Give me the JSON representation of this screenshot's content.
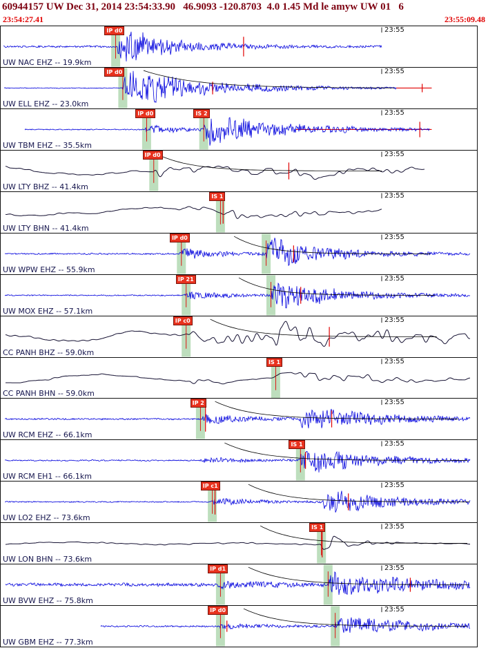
{
  "header": {
    "line": "60944157 UW Dec 31, 2014 23:54:33.90   46.9093 -120.8703  4.0 1.45 Md le amyw UW 01   6",
    "start_time": "23:54:27.41",
    "end_time": "23:55:09.48"
  },
  "colors": {
    "trace_blue": "#0000dd",
    "trace_black": "#161233",
    "pick_bg": "#e8321e",
    "band": "#b2d8b2",
    "marker": "#e00000",
    "frame": "#111111",
    "header_text": "#7d0010",
    "time_text": "#e00000",
    "station_text": "#15154d"
  },
  "traces": [
    {
      "station": "UW NAC EHZ -- 19.9km",
      "minute": "23:55",
      "color": "#0000dd",
      "black": false,
      "picks": [
        {
          "label": "IP d0",
          "frac": 0.218
        }
      ],
      "bands": [
        0.232
      ],
      "vlines": [
        {
          "frac": 0.51,
          "len": 14
        }
      ],
      "hline": null,
      "curve": null,
      "wave": {
        "start": 0.006,
        "end": 0.8,
        "quiet": 1.3,
        "bursts": [
          {
            "at": 0.243,
            "amp": 26,
            "decay": 9
          }
        ],
        "wander": 0,
        "cycles": 0
      }
    },
    {
      "station": "UW ELL EHZ -- 23.0km",
      "minute": "23:55",
      "color": "#0000dd",
      "black": false,
      "picks": [
        {
          "label": "IP d0",
          "frac": 0.218
        }
      ],
      "bands": [
        0.247
      ],
      "vlines": [
        {
          "frac": 0.445,
          "len": 9
        },
        {
          "frac": 0.885,
          "len": 6
        }
      ],
      "hline": {
        "from": 0.83,
        "to": 0.905
      },
      "curve": {
        "from": 0.3,
        "span": 230
      },
      "wave": {
        "start": 0.007,
        "end": 0.83,
        "quiet": 0.5,
        "bursts": [
          {
            "at": 0.256,
            "amp": 27,
            "decay": 6
          }
        ],
        "wander": 0,
        "cycles": 0
      }
    },
    {
      "station": "UW TBM EHZ -- 35.5km",
      "minute": "23:55",
      "color": "#0000dd",
      "black": false,
      "picks": [
        {
          "label": "IP d0",
          "frac": 0.283
        },
        {
          "label": "IS 2",
          "frac": 0.405
        }
      ],
      "bands": [
        0.297,
        0.417
      ],
      "vlines": [
        {
          "frac": 0.88,
          "len": 11
        }
      ],
      "hline": {
        "from": 0.62,
        "to": 0.905
      },
      "curve": null,
      "wave": {
        "start": 0.05,
        "end": 0.9,
        "quiet": 0.7,
        "bursts": [
          {
            "at": 0.303,
            "amp": 7,
            "decay": 14
          },
          {
            "at": 0.423,
            "amp": 22,
            "decay": 6
          }
        ],
        "wander": 0,
        "cycles": 0
      }
    },
    {
      "station": "UW LTY BHZ -- 41.4km",
      "minute": "23:55",
      "color": "#161233",
      "black": true,
      "picks": [
        {
          "label": "IP d0",
          "frac": 0.298
        }
      ],
      "bands": [
        0.312
      ],
      "vlines": [
        {
          "frac": 0.605,
          "len": 12
        }
      ],
      "hline": null,
      "curve": {
        "from": 0.325,
        "span": 150
      },
      "wave": {
        "start": 0.01,
        "end": 0.89,
        "quiet": 1.4,
        "bursts": [
          {
            "at": 0.318,
            "amp": 9,
            "decay": 4
          },
          {
            "at": 0.6,
            "amp": 4,
            "decay": 4
          }
        ],
        "wander": 6,
        "cycles": 2.2
      }
    },
    {
      "station": "UW LTY BHN -- 41.4km",
      "minute": "23:55",
      "color": "#161233",
      "black": true,
      "picks": [
        {
          "label": "IS 1",
          "frac": 0.438
        }
      ],
      "bands": [
        0.452
      ],
      "vlines": [
        {
          "frac": 0.467,
          "len": 16
        }
      ],
      "hline": null,
      "curve": null,
      "wave": {
        "start": 0.01,
        "end": 0.8,
        "quiet": 1.2,
        "bursts": [
          {
            "at": 0.33,
            "amp": 4,
            "decay": 6
          },
          {
            "at": 0.462,
            "amp": 7,
            "decay": 5
          }
        ],
        "wander": 5,
        "cycles": 2.0
      }
    },
    {
      "station": "UW WPW EHZ -- 55.9km",
      "minute": "23:55",
      "color": "#0000dd",
      "black": false,
      "picks": [
        {
          "label": "IP d0",
          "frac": 0.355
        }
      ],
      "bands": [
        0.37,
        0.548
      ],
      "vlines": [
        {
          "frac": 0.615,
          "len": 12
        }
      ],
      "hline": null,
      "curve": {
        "from": 0.49,
        "span": 130
      },
      "wave": {
        "start": 0.008,
        "end": 0.985,
        "quiet": 1.0,
        "bursts": [
          {
            "at": 0.376,
            "amp": 7,
            "decay": 10
          },
          {
            "at": 0.556,
            "amp": 22,
            "decay": 8
          }
        ],
        "wander": 0,
        "cycles": 0
      }
    },
    {
      "station": "UW MOX EHZ -- 57.1km",
      "minute": "23:55",
      "color": "#0000dd",
      "black": false,
      "picks": [
        {
          "label": "IP 21",
          "frac": 0.368
        }
      ],
      "bands": [
        0.38,
        0.558
      ],
      "vlines": [
        {
          "frac": 0.63,
          "len": 12
        }
      ],
      "hline": null,
      "curve": {
        "from": 0.5,
        "span": 130
      },
      "wave": {
        "start": 0.008,
        "end": 0.985,
        "quiet": 0.8,
        "bursts": [
          {
            "at": 0.386,
            "amp": 6,
            "decay": 10
          },
          {
            "at": 0.566,
            "amp": 20,
            "decay": 7
          }
        ],
        "wander": 0,
        "cycles": 0
      }
    },
    {
      "station": "CC PANH BHZ -- 59.0km",
      "minute": "23:55",
      "color": "#161233",
      "black": true,
      "picks": [
        {
          "label": "IP c0",
          "frac": 0.362
        }
      ],
      "bands": [
        0.38
      ],
      "vlines": [
        {
          "frac": 0.69,
          "len": 14
        }
      ],
      "hline": null,
      "curve": {
        "from": 0.44,
        "span": 150
      },
      "wave": {
        "start": 0.01,
        "end": 0.985,
        "quiet": 1.5,
        "bursts": [
          {
            "at": 0.386,
            "amp": 13,
            "decay": 3
          },
          {
            "at": 0.575,
            "amp": 15,
            "decay": 3.5
          }
        ],
        "wander": 8,
        "cycles": 2.6
      }
    },
    {
      "station": "CC PANH BHN -- 59.0km",
      "minute": "23:55",
      "color": "#161233",
      "black": true,
      "picks": [
        {
          "label": "IS 1",
          "frac": 0.558
        }
      ],
      "bands": [
        0.568
      ],
      "vlines": [],
      "hline": null,
      "curve": null,
      "wave": {
        "start": 0.01,
        "end": 0.985,
        "quiet": 1.3,
        "bursts": [
          {
            "at": 0.386,
            "amp": 3,
            "decay": 5
          },
          {
            "at": 0.574,
            "amp": 9,
            "decay": 4
          }
        ],
        "wander": 5,
        "cycles": 2.4
      }
    },
    {
      "station": "UW RCM EHZ -- 66.1km",
      "minute": "23:55",
      "color": "#0000dd",
      "black": false,
      "picks": [
        {
          "label": "IP 2",
          "frac": 0.398
        }
      ],
      "bands": [
        0.41
      ],
      "vlines": [
        {
          "frac": 0.43,
          "len": 18
        },
        {
          "frac": 0.695,
          "len": 12
        }
      ],
      "hline": null,
      "curve": {
        "from": 0.45,
        "span": 160
      },
      "wave": {
        "start": 0.008,
        "end": 0.985,
        "quiet": 1.1,
        "bursts": [
          {
            "at": 0.416,
            "amp": 7,
            "decay": 10
          },
          {
            "at": 0.627,
            "amp": 17,
            "decay": 6
          }
        ],
        "wander": 0,
        "cycles": 0
      }
    },
    {
      "station": "UW RCM EH1 -- 66.1km",
      "minute": "23:55",
      "color": "#0000dd",
      "black": false,
      "picks": [
        {
          "label": "IS 1",
          "frac": 0.605
        }
      ],
      "bands": [
        0.62
      ],
      "vlines": [
        {
          "frac": 0.64,
          "len": 12
        }
      ],
      "hline": null,
      "curve": {
        "from": 0.47,
        "span": 160
      },
      "wave": {
        "start": 0.008,
        "end": 0.985,
        "quiet": 0.9,
        "bursts": [
          {
            "at": 0.416,
            "amp": 4,
            "decay": 10
          },
          {
            "at": 0.627,
            "amp": 17,
            "decay": 6
          }
        ],
        "wander": 0,
        "cycles": 0
      }
    },
    {
      "station": "UW LO2 EHZ -- 73.6km",
      "minute": "23:55",
      "color": "#0000dd",
      "black": false,
      "picks": [
        {
          "label": "IP c1",
          "frac": 0.42
        }
      ],
      "bands": [
        0.435
      ],
      "vlines": [
        {
          "frac": 0.45,
          "len": 18
        },
        {
          "frac": 0.73,
          "len": 12
        }
      ],
      "hline": null,
      "curve": {
        "from": 0.52,
        "span": 150
      },
      "wave": {
        "start": 0.008,
        "end": 0.985,
        "quiet": 0.8,
        "bursts": [
          {
            "at": 0.441,
            "amp": 5,
            "decay": 10
          },
          {
            "at": 0.676,
            "amp": 15,
            "decay": 6
          }
        ],
        "wander": 0,
        "cycles": 0
      }
    },
    {
      "station": "UW LON BHN -- 73.6km",
      "minute": "23:55",
      "color": "#161233",
      "black": true,
      "picks": [
        {
          "label": "IS 1",
          "frac": 0.648
        }
      ],
      "bands": [
        0.664
      ],
      "vlines": [
        {
          "frac": 0.675,
          "len": 20
        }
      ],
      "hline": null,
      "curve": {
        "from": 0.545,
        "span": 140
      },
      "wave": {
        "start": 0.01,
        "end": 0.985,
        "quiet": 1.1,
        "bursts": [
          {
            "at": 0.672,
            "amp": 24,
            "decay": 18
          }
        ],
        "wander": 1.5,
        "cycles": 3
      }
    },
    {
      "station": "UW BVW EHZ -- 75.8km",
      "minute": "23:55",
      "color": "#0000dd",
      "black": false,
      "picks": [
        {
          "label": "IP d1",
          "frac": 0.435
        }
      ],
      "bands": [
        0.452,
        0.678
      ],
      "vlines": [
        {
          "frac": 0.86,
          "len": 10
        }
      ],
      "hline": null,
      "curve": {
        "from": 0.52,
        "span": 160
      },
      "wave": {
        "start": 0.01,
        "end": 0.985,
        "quiet": 2.2,
        "bursts": [
          {
            "at": 0.455,
            "amp": 4,
            "decay": 8
          },
          {
            "at": 0.687,
            "amp": 15,
            "decay": 5
          }
        ],
        "wander": 0,
        "cycles": 0
      }
    },
    {
      "station": "UW GBM EHZ -- 77.3km",
      "minute": "23:55",
      "color": "#0000dd",
      "black": false,
      "picks": [
        {
          "label": "IP d0",
          "frac": 0.435
        }
      ],
      "bands": [
        0.452,
        0.693
      ],
      "vlines": [
        {
          "frac": 0.475,
          "len": 8
        }
      ],
      "hline": null,
      "curve": {
        "from": 0.51,
        "span": 160
      },
      "wave": {
        "start": 0.21,
        "end": 0.985,
        "quiet": 1.1,
        "bursts": [
          {
            "at": 0.455,
            "amp": 3,
            "decay": 8
          },
          {
            "at": 0.7,
            "amp": 13,
            "decay": 5
          }
        ],
        "wander": 0,
        "cycles": 0
      }
    }
  ]
}
